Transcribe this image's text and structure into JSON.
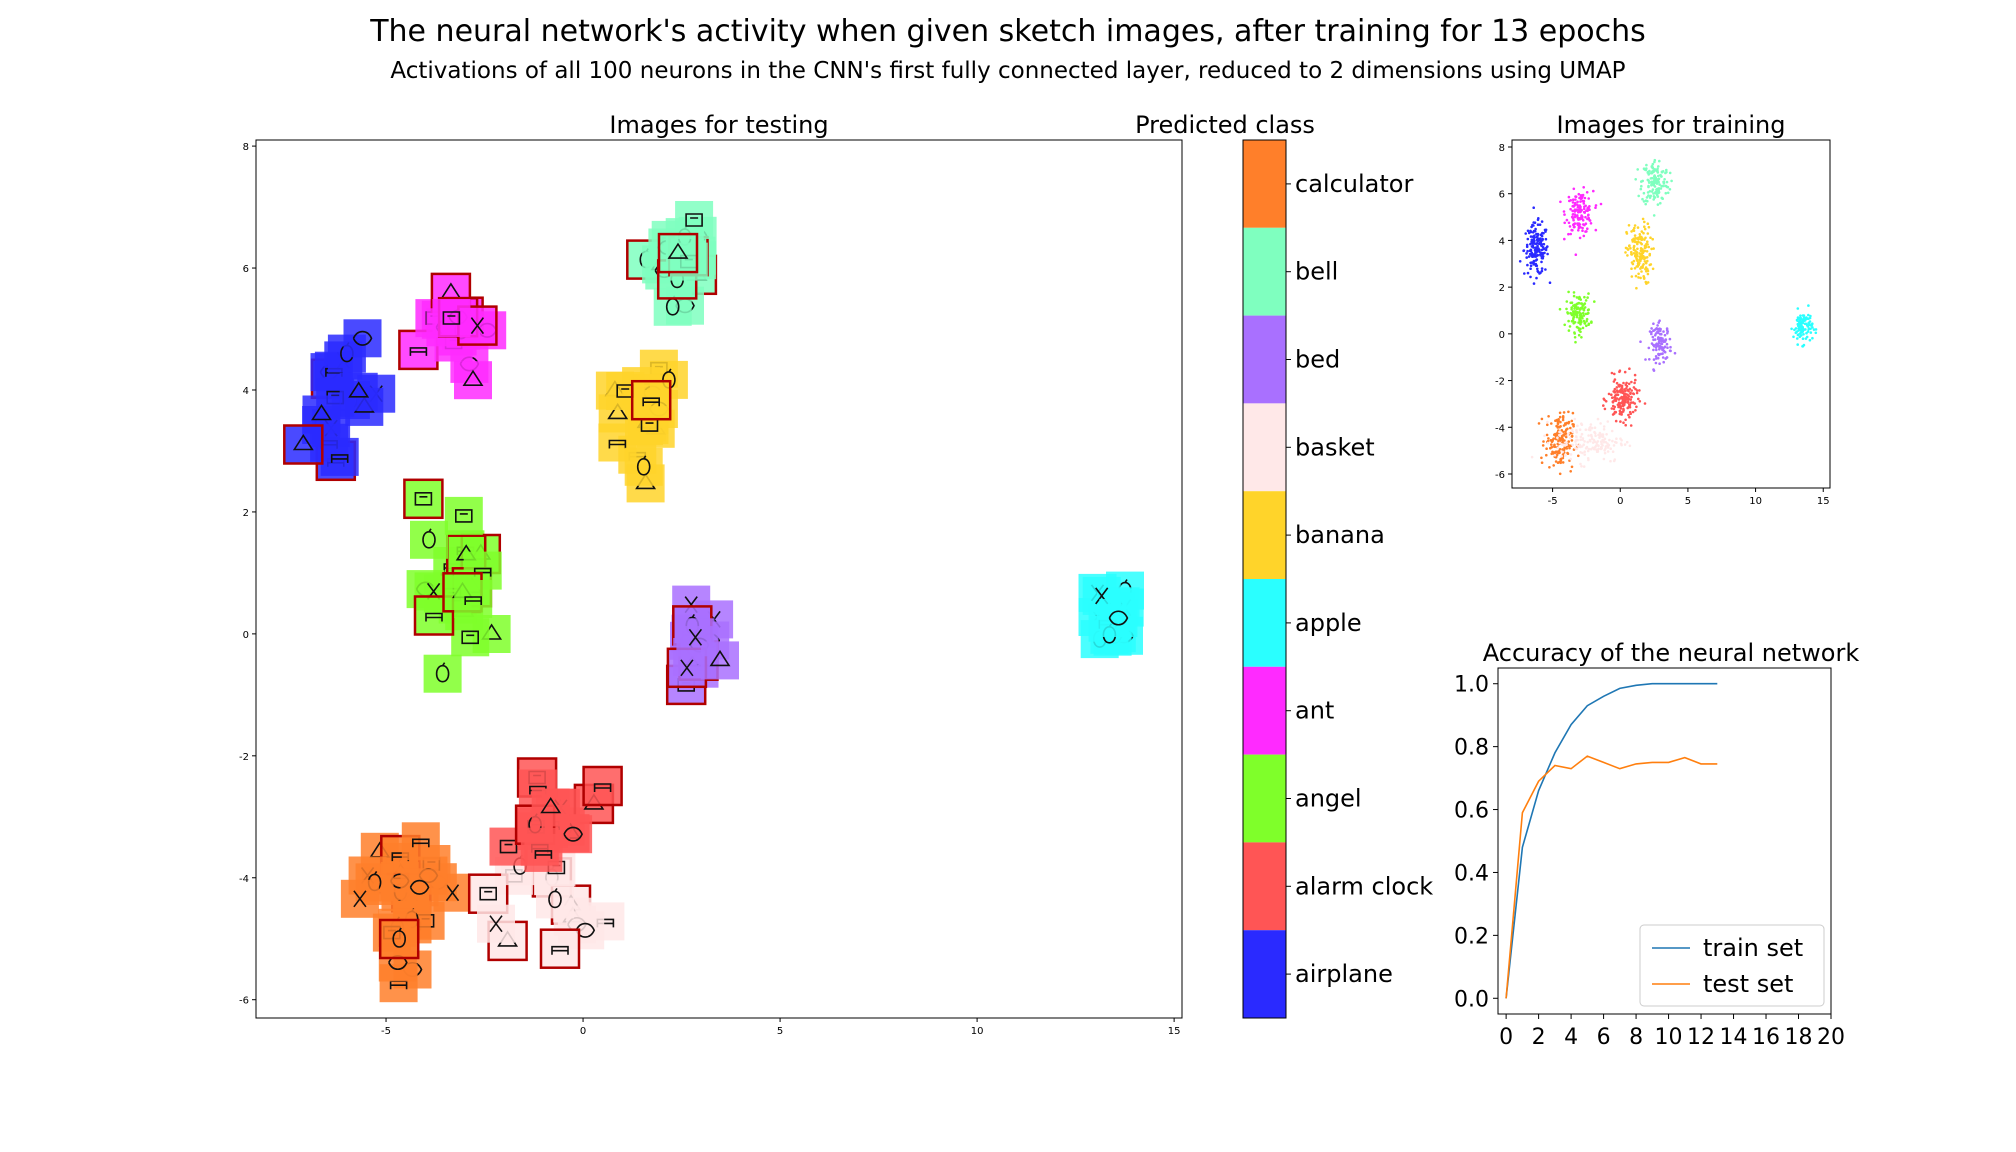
{
  "figure": {
    "title": "The neural network's activity when given sketch images, after training for 13 epochs",
    "subtitle": "Activations of all 100 neurons in the CNN's first fully connected layer, reduced to 2 dimensions using UMAP"
  },
  "classes": [
    {
      "name": "calculator",
      "color": "#ff7f2a"
    },
    {
      "name": "bell",
      "color": "#7fffbf"
    },
    {
      "name": "bed",
      "color": "#a970ff"
    },
    {
      "name": "basket",
      "color": "#ffe8e8"
    },
    {
      "name": "banana",
      "color": "#ffd42a"
    },
    {
      "name": "apple",
      "color": "#2affff"
    },
    {
      "name": "ant",
      "color": "#ff2aff"
    },
    {
      "name": "angel",
      "color": "#7fff2a"
    },
    {
      "name": "alarm clock",
      "color": "#ff5555"
    },
    {
      "name": "airplane",
      "color": "#2a2aff"
    }
  ],
  "colorbar": {
    "title": "Predicted class"
  },
  "chart_data": [
    {
      "type": "scatter",
      "title": "Images for testing",
      "xlim": [
        -8.3,
        15.2
      ],
      "ylim": [
        -6.3,
        8.1
      ],
      "xticks": [
        "-5",
        "0",
        "5",
        "10",
        "15"
      ],
      "xtick_values": [
        -5,
        0,
        5,
        10,
        15
      ],
      "yticks": [
        "-6",
        "-4",
        "-2",
        "0",
        "2",
        "4",
        "6",
        "8"
      ],
      "ytick_values": [
        -6,
        -4,
        -2,
        0,
        2,
        4,
        6,
        8
      ],
      "grid": false,
      "note_marks": "each point is a sketch thumbnail tinted with its predicted-class color; red-bordered thumbnails are misclassified",
      "clusters": [
        {
          "class": "calculator",
          "cx": -4.5,
          "cy": -4.3,
          "spread": [
            1.3,
            1.3
          ],
          "n": 26
        },
        {
          "class": "bell",
          "cx": 2.3,
          "cy": 6.2,
          "spread": [
            0.9,
            0.9
          ],
          "n": 18
        },
        {
          "class": "bed",
          "cx": 3.0,
          "cy": -0.4,
          "spread": [
            0.9,
            0.8
          ],
          "n": 14
        },
        {
          "class": "basket",
          "cx": -1.0,
          "cy": -4.4,
          "spread": [
            1.8,
            1.2
          ],
          "n": 14
        },
        {
          "class": "banana",
          "cx": 1.5,
          "cy": 3.5,
          "spread": [
            1.0,
            1.0
          ],
          "n": 18
        },
        {
          "class": "apple",
          "cx": 13.4,
          "cy": 0.3,
          "spread": [
            0.7,
            0.7
          ],
          "n": 14
        },
        {
          "class": "ant",
          "cx": -3.2,
          "cy": 5.0,
          "spread": [
            1.0,
            0.9
          ],
          "n": 16
        },
        {
          "class": "angel",
          "cx": -3.1,
          "cy": 0.8,
          "spread": [
            1.0,
            1.4
          ],
          "n": 22
        },
        {
          "class": "alarm clock",
          "cx": -0.7,
          "cy": -3.2,
          "spread": [
            1.3,
            0.9
          ],
          "n": 18
        },
        {
          "class": "airplane",
          "cx": -6.0,
          "cy": 3.8,
          "spread": [
            1.0,
            1.0
          ],
          "n": 18
        }
      ]
    },
    {
      "type": "scatter",
      "title": "Images for training",
      "xlim": [
        -8.0,
        15.5
      ],
      "ylim": [
        -6.6,
        8.3
      ],
      "xticks": [
        "-5",
        "0",
        "5",
        "10",
        "15"
      ],
      "xtick_values": [
        -5,
        0,
        5,
        10,
        15
      ],
      "yticks": [
        "-6",
        "-4",
        "-2",
        "0",
        "2",
        "4",
        "6",
        "8"
      ],
      "ytick_values": [
        -6,
        -4,
        -2,
        0,
        2,
        4,
        6,
        8
      ],
      "grid": false,
      "clusters": [
        {
          "class": "airplane",
          "cx": -6.2,
          "cy": 3.6,
          "sx": 0.45,
          "sy": 0.55,
          "n": 170
        },
        {
          "class": "ant",
          "cx": -3.0,
          "cy": 5.2,
          "sx": 0.5,
          "sy": 0.45,
          "n": 150
        },
        {
          "class": "bell",
          "cx": 2.6,
          "cy": 6.5,
          "sx": 0.5,
          "sy": 0.5,
          "n": 150
        },
        {
          "class": "banana",
          "cx": 1.4,
          "cy": 3.4,
          "sx": 0.45,
          "sy": 0.65,
          "n": 160
        },
        {
          "class": "angel",
          "cx": -3.1,
          "cy": 0.9,
          "sx": 0.45,
          "sy": 0.4,
          "n": 130
        },
        {
          "class": "bed",
          "cx": 3.0,
          "cy": -0.4,
          "sx": 0.4,
          "sy": 0.4,
          "n": 110
        },
        {
          "class": "apple",
          "cx": 13.5,
          "cy": 0.3,
          "sx": 0.35,
          "sy": 0.35,
          "n": 110
        },
        {
          "class": "alarm clock",
          "cx": 0.2,
          "cy": -2.8,
          "sx": 0.55,
          "sy": 0.45,
          "n": 170
        },
        {
          "class": "calculator",
          "cx": -4.5,
          "cy": -4.6,
          "sx": 0.5,
          "sy": 0.6,
          "n": 170
        },
        {
          "class": "basket",
          "cx": -2.2,
          "cy": -4.6,
          "sx": 1.3,
          "sy": 0.45,
          "n": 160
        }
      ]
    },
    {
      "type": "line",
      "title": "Accuracy of the neural network",
      "xlim": [
        -0.5,
        20
      ],
      "ylim": [
        -0.05,
        1.05
      ],
      "xticks": [
        "0",
        "2",
        "4",
        "6",
        "8",
        "10",
        "12",
        "14",
        "16",
        "18",
        "20"
      ],
      "xtick_values": [
        0,
        2,
        4,
        6,
        8,
        10,
        12,
        14,
        16,
        18,
        20
      ],
      "yticks": [
        "0.0",
        "0.2",
        "0.4",
        "0.6",
        "0.8",
        "1.0"
      ],
      "ytick_values": [
        0.0,
        0.2,
        0.4,
        0.6,
        0.8,
        1.0
      ],
      "legend": "lower-right",
      "x": [
        0,
        1,
        2,
        3,
        4,
        5,
        6,
        7,
        8,
        9,
        10,
        11,
        12,
        13
      ],
      "series": [
        {
          "name": "train set",
          "color": "#1f77b4",
          "values": [
            0.0,
            0.48,
            0.66,
            0.78,
            0.87,
            0.93,
            0.96,
            0.985,
            0.995,
            1.0,
            1.0,
            1.0,
            1.0,
            1.0
          ]
        },
        {
          "name": "test set",
          "color": "#ff7f0e",
          "values": [
            0.0,
            0.59,
            0.69,
            0.74,
            0.73,
            0.77,
            0.75,
            0.73,
            0.745,
            0.75,
            0.75,
            0.765,
            0.745,
            0.745
          ]
        }
      ]
    }
  ]
}
